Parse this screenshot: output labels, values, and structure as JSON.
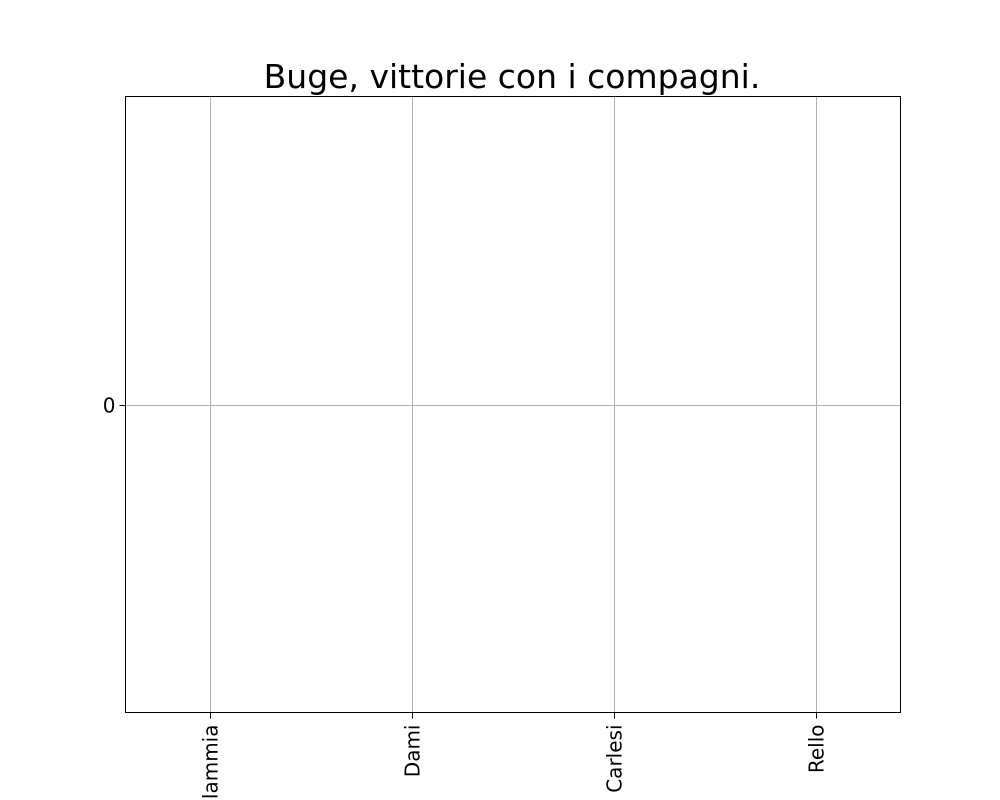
{
  "chart_data": {
    "type": "bar",
    "title": "Buge, vittorie con i compagni.",
    "xlabel": "",
    "ylabel": "",
    "categories": [
      "Flammia",
      "Dami",
      "Carlesi",
      "Rello"
    ],
    "values": [
      0,
      0,
      0,
      0
    ],
    "y_ticks": [
      0
    ],
    "ylim": [
      -0.06,
      0.06
    ],
    "grid": true,
    "x_tick_rotation": "vertical"
  }
}
